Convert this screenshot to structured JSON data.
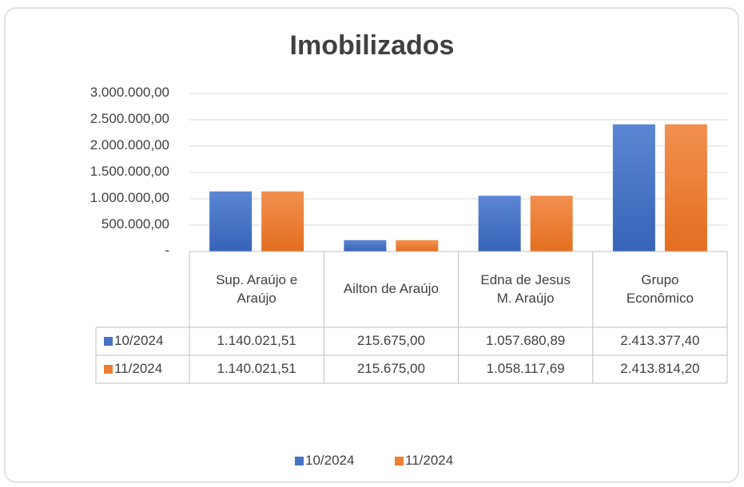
{
  "chart_data": {
    "type": "bar",
    "title": "Imobilizados",
    "categories": [
      "Sup. Araújo e Araújo",
      "Ailton de Araújo",
      "Edna de Jesus M. Araújo",
      "Grupo Econômico"
    ],
    "series": [
      {
        "name": "10/2024",
        "color": "#4472c4",
        "values": [
          1140021.51,
          215675.0,
          1057680.89,
          2413377.4
        ],
        "value_labels": [
          "1.140.021,51",
          "215.675,00",
          "1.057.680,89",
          "2.413.377,40"
        ]
      },
      {
        "name": "11/2024",
        "color": "#ed7d31",
        "values": [
          1140021.51,
          215675.0,
          1058117.69,
          2413814.2
        ],
        "value_labels": [
          "1.140.021,51",
          "215.675,00",
          "1.058.117,69",
          "2.413.814,20"
        ]
      }
    ],
    "ylim": [
      0,
      3000000
    ],
    "yticks": [
      {
        "value": 0,
        "label": "-"
      },
      {
        "value": 500000,
        "label": "500.000,00"
      },
      {
        "value": 1000000,
        "label": "1.000.000,00"
      },
      {
        "value": 1500000,
        "label": "1.500.000,00"
      },
      {
        "value": 2000000,
        "label": "2.000.000,00"
      },
      {
        "value": 2500000,
        "label": "2.500.000,00"
      },
      {
        "value": 3000000,
        "label": "3.000.000,00"
      }
    ],
    "grid": true,
    "legend": "bottom",
    "data_table": true
  }
}
